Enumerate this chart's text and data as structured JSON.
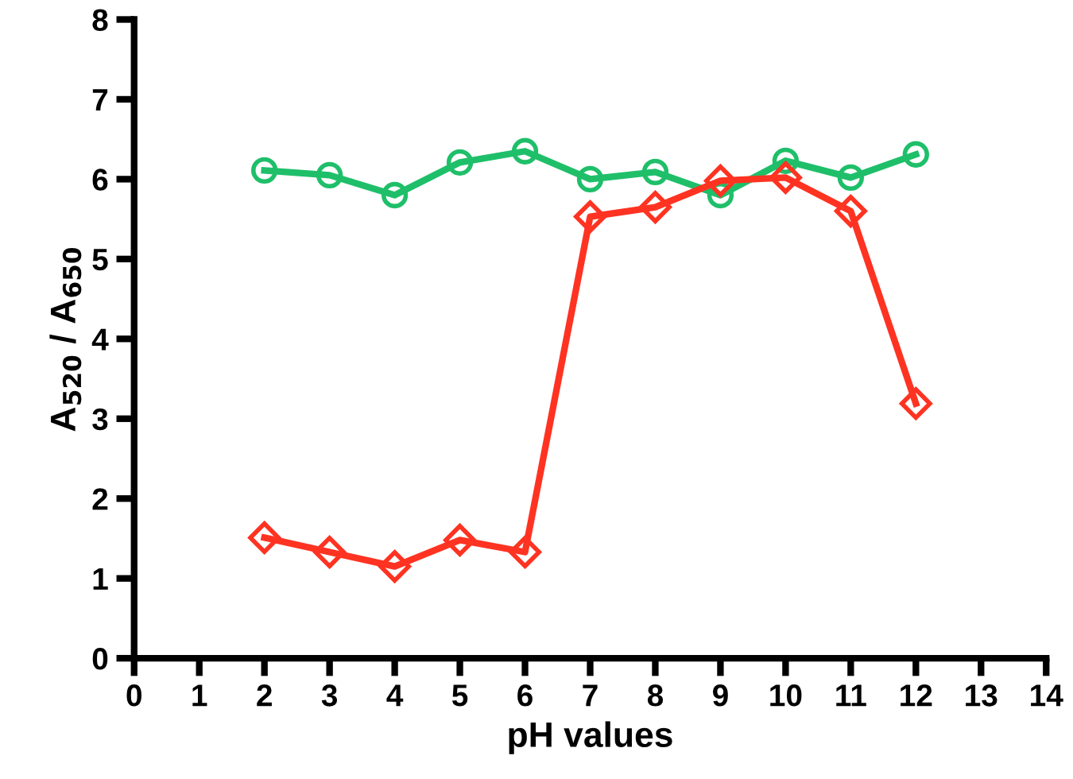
{
  "chart_data": {
    "type": "line",
    "xlabel": "pH values",
    "ylabel": "A$_{520}$ / A$_{650}$",
    "x": [
      2,
      3,
      4,
      5,
      6,
      7,
      8,
      9,
      10,
      11,
      12
    ],
    "series": [
      {
        "color": "#1fbf6a",
        "marker": "circle",
        "values": [
          6.11,
          6.05,
          5.8,
          6.21,
          6.35,
          6.0,
          6.09,
          5.8,
          6.23,
          6.02,
          6.31
        ]
      },
      {
        "color": "#ff3322",
        "marker": "diamond",
        "values": [
          1.51,
          1.33,
          1.15,
          1.48,
          1.33,
          5.53,
          5.65,
          5.98,
          6.02,
          5.6,
          3.19
        ]
      }
    ],
    "xlim": [
      0,
      14
    ],
    "ylim": [
      0,
      8
    ],
    "xticks": [
      0,
      1,
      2,
      3,
      4,
      5,
      6,
      7,
      8,
      9,
      10,
      11,
      12,
      13,
      14
    ],
    "yticks": [
      0,
      1,
      2,
      3,
      4,
      5,
      6,
      7,
      8
    ],
    "grid": false,
    "line_style": "solid"
  }
}
